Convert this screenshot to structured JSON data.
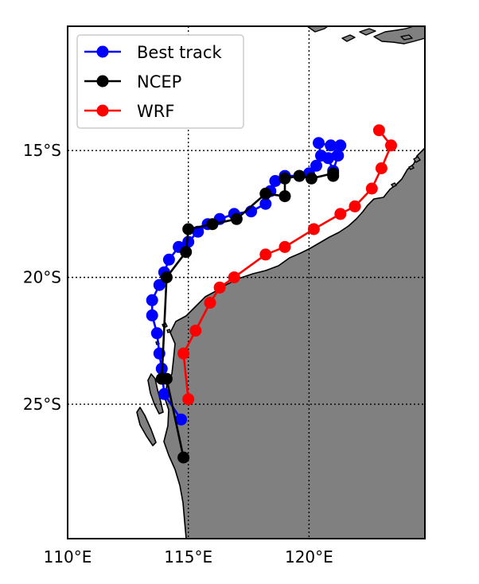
{
  "chart_data": {
    "type": "line",
    "title": "",
    "xlabel": "",
    "ylabel": "",
    "x_ticks": [
      {
        "value": 110,
        "label": "110°E"
      },
      {
        "value": 115,
        "label": "115°E"
      },
      {
        "value": 120,
        "label": "120°E"
      }
    ],
    "y_ticks": [
      {
        "value": -15,
        "label": "15°S"
      },
      {
        "value": -20,
        "label": "20°S"
      },
      {
        "value": -25,
        "label": "25°S"
      }
    ],
    "xlim": [
      110,
      124.8
    ],
    "ylim": [
      -30.3,
      -10.1
    ],
    "grid": true,
    "legend": "top-left",
    "land_color": "#808080",
    "series": [
      {
        "name": "Best track",
        "color": "#0000ff",
        "points": [
          [
            114.7,
            -25.6
          ],
          [
            114.0,
            -24.6
          ],
          [
            113.9,
            -23.6
          ],
          [
            113.8,
            -23.0
          ],
          [
            113.7,
            -22.2
          ],
          [
            113.5,
            -21.5
          ],
          [
            113.5,
            -20.9
          ],
          [
            113.8,
            -20.3
          ],
          [
            114.0,
            -19.8
          ],
          [
            114.2,
            -19.3
          ],
          [
            114.6,
            -18.8
          ],
          [
            115.0,
            -18.6
          ],
          [
            115.4,
            -18.2
          ],
          [
            115.8,
            -17.9
          ],
          [
            116.3,
            -17.7
          ],
          [
            116.9,
            -17.5
          ],
          [
            117.6,
            -17.4
          ],
          [
            118.2,
            -17.1
          ],
          [
            118.4,
            -16.6
          ],
          [
            118.6,
            -16.2
          ],
          [
            119.0,
            -16.0
          ],
          [
            119.6,
            -16.0
          ],
          [
            120.0,
            -15.9
          ],
          [
            120.3,
            -15.6
          ],
          [
            120.5,
            -15.2
          ],
          [
            120.4,
            -14.7
          ],
          [
            120.9,
            -14.8
          ],
          [
            121.3,
            -14.8
          ],
          [
            120.8,
            -15.3
          ],
          [
            121.0,
            -15.8
          ],
          [
            121.2,
            -15.2
          ]
        ]
      },
      {
        "name": "NCEP",
        "color": "#000000",
        "points": [
          [
            114.8,
            -27.1
          ],
          [
            114.1,
            -24.0
          ],
          [
            113.9,
            -24.0
          ],
          [
            114.1,
            -20.0
          ],
          [
            114.9,
            -19.0
          ],
          [
            115.0,
            -18.1
          ],
          [
            116.0,
            -17.9
          ],
          [
            117.0,
            -17.7
          ],
          [
            118.2,
            -16.7
          ],
          [
            119.0,
            -16.8
          ],
          [
            119.0,
            -16.1
          ],
          [
            119.6,
            -16.0
          ],
          [
            120.1,
            -16.1
          ],
          [
            121.0,
            -15.9
          ],
          [
            121.0,
            -16.0
          ]
        ]
      },
      {
        "name": "WRF",
        "color": "#ff0000",
        "points": [
          [
            115.0,
            -24.8
          ],
          [
            114.8,
            -23.0
          ],
          [
            115.3,
            -22.1
          ],
          [
            115.9,
            -21.0
          ],
          [
            116.3,
            -20.4
          ],
          [
            116.9,
            -20.0
          ],
          [
            118.2,
            -19.1
          ],
          [
            119.0,
            -18.8
          ],
          [
            120.2,
            -18.1
          ],
          [
            121.3,
            -17.5
          ],
          [
            121.9,
            -17.2
          ],
          [
            122.6,
            -16.5
          ],
          [
            123.0,
            -15.7
          ],
          [
            123.4,
            -14.8
          ],
          [
            122.9,
            -14.2
          ]
        ]
      }
    ]
  }
}
